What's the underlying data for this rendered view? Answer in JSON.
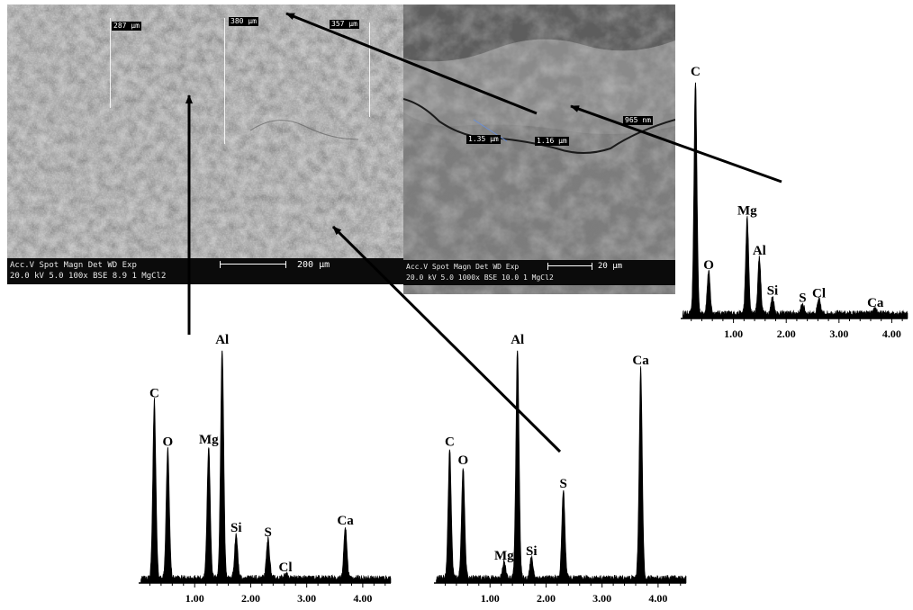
{
  "micrograph_left": {
    "infobar": {
      "line1": "Acc.V  Spot Magn    Det  WD  Exp",
      "line2": "20.0 kV 5.0   100x   BSE  8.9    1      MgCl2",
      "scale_label": "200 µm"
    },
    "dimensions": [
      "287 µm",
      "380 µm",
      "357 µm"
    ]
  },
  "micrograph_right": {
    "infobar": {
      "line1": "Acc.V  Spot Magn   Det  WD  Exp",
      "line2": "20.0 kV 5.0  1000x  BSE 10.0  1      MgCl2",
      "scale_label": "20 µm"
    },
    "dimensions": [
      "1.35 µm",
      "1.16 µm",
      "965 nm"
    ]
  },
  "chart_data": [
    {
      "type": "line",
      "id": "spectrum-top-right",
      "xlim": [
        0,
        4.3
      ],
      "ylim": [
        0,
        100
      ],
      "x_ticks": [
        "1.00",
        "2.00",
        "3.00",
        "4.00"
      ],
      "peaks": [
        {
          "label": "C",
          "x": 0.28,
          "y": 100
        },
        {
          "label": "O",
          "x": 0.53,
          "y": 18
        },
        {
          "label": "Mg",
          "x": 1.26,
          "y": 41
        },
        {
          "label": "Al",
          "x": 1.49,
          "y": 24
        },
        {
          "label": "Si",
          "x": 1.74,
          "y": 7
        },
        {
          "label": "S",
          "x": 2.31,
          "y": 4
        },
        {
          "label": "Cl",
          "x": 2.62,
          "y": 6
        },
        {
          "label": "Ca",
          "x": 3.69,
          "y": 2
        }
      ]
    },
    {
      "type": "line",
      "id": "spectrum-bottom-left",
      "xlim": [
        0,
        4.5
      ],
      "ylim": [
        0,
        100
      ],
      "x_ticks": [
        "1.00",
        "2.00",
        "3.00",
        "4.00"
      ],
      "peaks": [
        {
          "label": "C",
          "x": 0.28,
          "y": 77
        },
        {
          "label": "O",
          "x": 0.52,
          "y": 56
        },
        {
          "label": "Mg",
          "x": 1.25,
          "y": 57
        },
        {
          "label": "Al",
          "x": 1.49,
          "y": 100
        },
        {
          "label": "Si",
          "x": 1.74,
          "y": 19
        },
        {
          "label": "S",
          "x": 2.31,
          "y": 17
        },
        {
          "label": "Cl",
          "x": 2.62,
          "y": 2
        },
        {
          "label": "Ca",
          "x": 3.69,
          "y": 22
        }
      ]
    },
    {
      "type": "line",
      "id": "spectrum-bottom-right",
      "xlim": [
        0,
        4.5
      ],
      "ylim": [
        0,
        100
      ],
      "x_ticks": [
        "1.00",
        "2.00",
        "3.00",
        "4.00"
      ],
      "peaks": [
        {
          "label": "C",
          "x": 0.28,
          "y": 56
        },
        {
          "label": "O",
          "x": 0.52,
          "y": 48
        },
        {
          "label": "Mg",
          "x": 1.25,
          "y": 7
        },
        {
          "label": "Al",
          "x": 1.49,
          "y": 100
        },
        {
          "label": "Si",
          "x": 1.74,
          "y": 9
        },
        {
          "label": "S",
          "x": 2.31,
          "y": 38
        },
        {
          "label": "Ca",
          "x": 3.69,
          "y": 91
        }
      ]
    }
  ]
}
